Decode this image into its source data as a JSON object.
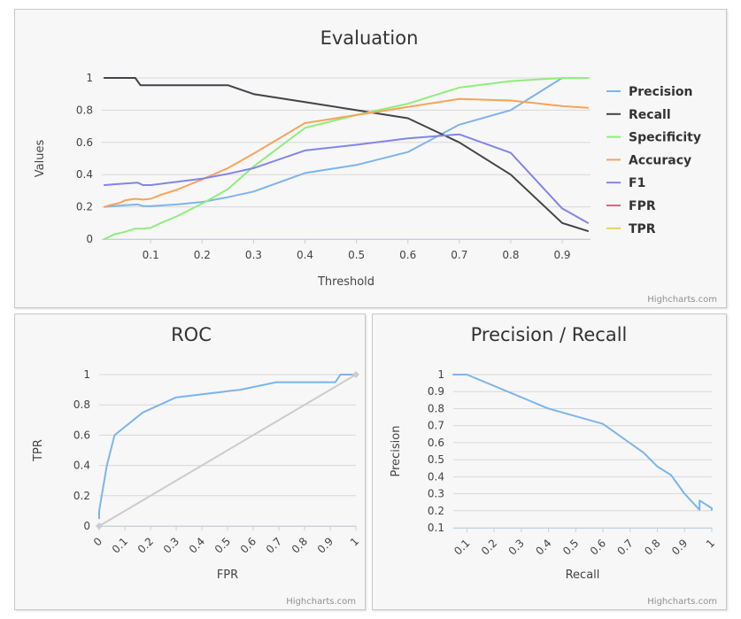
{
  "colors": {
    "precision": "#7cb5ec",
    "recall": "#434348",
    "specificity": "#90ed7d",
    "accuracy": "#f7a35c",
    "f1": "#8085e9",
    "fpr": "#f15c80",
    "tpr": "#e4d354",
    "diagonal": "#cccccc"
  },
  "credits": "Highcharts.com",
  "chart_data": [
    {
      "type": "line",
      "title": "Evaluation",
      "xlabel": "Threshold",
      "ylabel": "Values",
      "xlim": [
        0.005,
        0.955
      ],
      "ylim": [
        0,
        1
      ],
      "xticks": [
        0.1,
        0.2,
        0.3,
        0.4,
        0.5,
        0.6,
        0.7,
        0.8,
        0.9
      ],
      "xtick_labels": [
        "0.1",
        "0.2",
        "0.3",
        "0.4",
        "0.5",
        "0.6",
        "0.7",
        "0.8",
        "0.9"
      ],
      "yticks": [
        0,
        0.2,
        0.4,
        0.6,
        0.8,
        1
      ],
      "ytick_labels": [
        "0",
        "0.2",
        "0.4",
        "0.6",
        "0.8",
        "1"
      ],
      "grid": true,
      "legend": "right",
      "series": [
        {
          "name": "Precision",
          "color_key": "precision",
          "points": [
            [
              0.01,
              0.2
            ],
            [
              0.05,
              0.21
            ],
            [
              0.075,
              0.215
            ],
            [
              0.085,
              0.205
            ],
            [
              0.1,
              0.205
            ],
            [
              0.15,
              0.215
            ],
            [
              0.2,
              0.23
            ],
            [
              0.25,
              0.26
            ],
            [
              0.3,
              0.295
            ],
            [
              0.4,
              0.41
            ],
            [
              0.5,
              0.46
            ],
            [
              0.6,
              0.54
            ],
            [
              0.7,
              0.71
            ],
            [
              0.8,
              0.8
            ],
            [
              0.9,
              1.0
            ],
            [
              0.95,
              1.0
            ]
          ]
        },
        {
          "name": "Recall",
          "color_key": "recall",
          "points": [
            [
              0.01,
              1.0
            ],
            [
              0.07,
              1.0
            ],
            [
              0.08,
              0.955
            ],
            [
              0.25,
              0.955
            ],
            [
              0.3,
              0.9
            ],
            [
              0.4,
              0.85
            ],
            [
              0.5,
              0.8
            ],
            [
              0.6,
              0.75
            ],
            [
              0.7,
              0.6
            ],
            [
              0.8,
              0.4
            ],
            [
              0.9,
              0.1
            ],
            [
              0.95,
              0.05
            ]
          ]
        },
        {
          "name": "Specificity",
          "color_key": "specificity",
          "points": [
            [
              0.01,
              0.0
            ],
            [
              0.02,
              0.015
            ],
            [
              0.03,
              0.03
            ],
            [
              0.05,
              0.045
            ],
            [
              0.07,
              0.065
            ],
            [
              0.085,
              0.065
            ],
            [
              0.1,
              0.07
            ],
            [
              0.12,
              0.1
            ],
            [
              0.15,
              0.14
            ],
            [
              0.2,
              0.22
            ],
            [
              0.25,
              0.31
            ],
            [
              0.3,
              0.45
            ],
            [
              0.4,
              0.69
            ],
            [
              0.5,
              0.77
            ],
            [
              0.6,
              0.84
            ],
            [
              0.7,
              0.94
            ],
            [
              0.8,
              0.98
            ],
            [
              0.9,
              1.0
            ],
            [
              0.95,
              1.0
            ]
          ]
        },
        {
          "name": "Accuracy",
          "color_key": "accuracy",
          "points": [
            [
              0.01,
              0.2
            ],
            [
              0.02,
              0.21
            ],
            [
              0.04,
              0.225
            ],
            [
              0.05,
              0.24
            ],
            [
              0.07,
              0.25
            ],
            [
              0.085,
              0.245
            ],
            [
              0.1,
              0.25
            ],
            [
              0.12,
              0.275
            ],
            [
              0.15,
              0.305
            ],
            [
              0.2,
              0.37
            ],
            [
              0.25,
              0.44
            ],
            [
              0.3,
              0.53
            ],
            [
              0.4,
              0.72
            ],
            [
              0.5,
              0.77
            ],
            [
              0.6,
              0.82
            ],
            [
              0.7,
              0.87
            ],
            [
              0.8,
              0.86
            ],
            [
              0.9,
              0.825
            ],
            [
              0.95,
              0.815
            ]
          ]
        },
        {
          "name": "F1",
          "color_key": "f1",
          "points": [
            [
              0.01,
              0.335
            ],
            [
              0.05,
              0.345
            ],
            [
              0.075,
              0.35
            ],
            [
              0.085,
              0.335
            ],
            [
              0.1,
              0.335
            ],
            [
              0.15,
              0.355
            ],
            [
              0.2,
              0.375
            ],
            [
              0.25,
              0.405
            ],
            [
              0.3,
              0.44
            ],
            [
              0.4,
              0.55
            ],
            [
              0.5,
              0.585
            ],
            [
              0.6,
              0.625
            ],
            [
              0.7,
              0.65
            ],
            [
              0.8,
              0.535
            ],
            [
              0.9,
              0.19
            ],
            [
              0.95,
              0.1
            ]
          ]
        },
        {
          "name": "FPR",
          "color_key": "fpr",
          "points": []
        },
        {
          "name": "TPR",
          "color_key": "tpr",
          "points": []
        }
      ]
    },
    {
      "type": "line",
      "title": "ROC",
      "xlabel": "FPR",
      "ylabel": "TPR",
      "xlim": [
        0,
        1
      ],
      "ylim": [
        0,
        1
      ],
      "xticks": [
        0,
        0.1,
        0.2,
        0.3,
        0.4,
        0.5,
        0.6,
        0.7,
        0.8,
        0.9,
        1
      ],
      "xtick_labels": [
        "0",
        "0.1",
        "0.2",
        "0.3",
        "0.4",
        "0.5",
        "0.6",
        "0.7",
        "0.8",
        "0.9",
        "1"
      ],
      "yticks": [
        0,
        0.2,
        0.4,
        0.6,
        0.8,
        1
      ],
      "ytick_labels": [
        "0",
        "0.2",
        "0.4",
        "0.6",
        "0.8",
        "1"
      ],
      "grid": true,
      "series": [
        {
          "color_key": "precision",
          "points": [
            [
              0.0,
              0.05
            ],
            [
              0.0,
              0.1
            ],
            [
              0.03,
              0.4
            ],
            [
              0.06,
              0.6
            ],
            [
              0.17,
              0.75
            ],
            [
              0.3,
              0.85
            ],
            [
              0.55,
              0.9
            ],
            [
              0.69,
              0.95
            ],
            [
              0.92,
              0.95
            ],
            [
              0.94,
              1.0
            ],
            [
              0.96,
              1.0
            ],
            [
              1.0,
              1.0
            ]
          ]
        },
        {
          "color_key": "diagonal",
          "markers": true,
          "points": [
            [
              0,
              0
            ],
            [
              1,
              1
            ]
          ]
        }
      ]
    },
    {
      "type": "line",
      "title": "Precision / Recall",
      "xlabel": "Recall",
      "ylabel": "Precision",
      "xlim": [
        0.05,
        1
      ],
      "ylim": [
        0.1,
        1
      ],
      "xticks": [
        0.1,
        0.2,
        0.3,
        0.4,
        0.5,
        0.6,
        0.7,
        0.8,
        0.9,
        1
      ],
      "xtick_labels": [
        "0.1",
        "0.2",
        "0.3",
        "0.4",
        "0.5",
        "0.6",
        "0.7",
        "0.8",
        "0.9",
        "1"
      ],
      "yticks": [
        0.1,
        0.2,
        0.3,
        0.4,
        0.5,
        0.6,
        0.7,
        0.8,
        0.9,
        1
      ],
      "ytick_labels": [
        "0.1",
        "0.2",
        "0.3",
        "0.4",
        "0.5",
        "0.6",
        "0.7",
        "0.8",
        "0.9",
        "1"
      ],
      "grid": true,
      "series": [
        {
          "color_key": "precision",
          "points": [
            [
              0.05,
              1.0
            ],
            [
              0.1,
              1.0
            ],
            [
              0.4,
              0.8
            ],
            [
              0.6,
              0.71
            ],
            [
              0.75,
              0.54
            ],
            [
              0.8,
              0.46
            ],
            [
              0.85,
              0.41
            ],
            [
              0.9,
              0.3
            ],
            [
              0.955,
              0.205
            ],
            [
              0.955,
              0.26
            ],
            [
              1.0,
              0.215
            ],
            [
              1.0,
              0.205
            ]
          ]
        }
      ]
    }
  ]
}
